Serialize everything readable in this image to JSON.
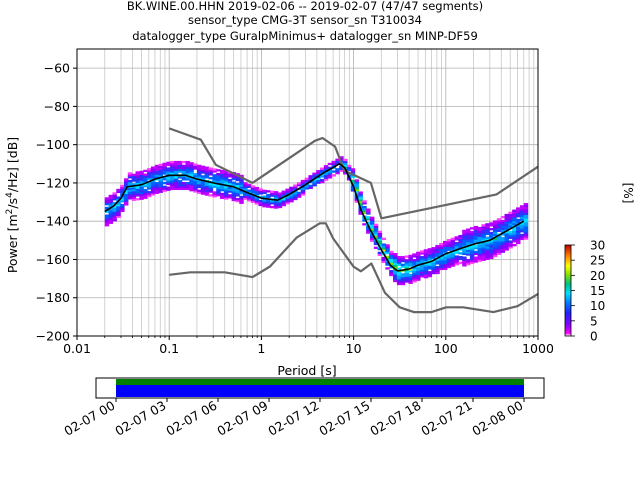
{
  "chart_data": {
    "type": "heatmap",
    "title_lines": [
      "BK.WINE.00.HHN   2019-02-06 -- 2019-02-07  (47/47 segments)",
      "sensor_type CMG-3T sensor_sn T310034",
      "datalogger_type GuralpMinimus+ datalogger_sn MINP-DF59"
    ],
    "xlabel": "Period [s]",
    "ylabel": "Power [m²/s⁴/Hz] [dB]",
    "xscale": "log",
    "xlim": [
      0.01,
      1000
    ],
    "ylim": [
      -200,
      -50
    ],
    "x_ticks": [
      {
        "value": 0.01,
        "label": "0.01"
      },
      {
        "value": 0.1,
        "label": "0.1"
      },
      {
        "value": 1,
        "label": "1"
      },
      {
        "value": 10,
        "label": "10"
      },
      {
        "value": 100,
        "label": "100"
      },
      {
        "value": 1000,
        "label": "1000"
      }
    ],
    "y_ticks": [
      {
        "value": -60,
        "label": "−60"
      },
      {
        "value": -80,
        "label": "−80"
      },
      {
        "value": -100,
        "label": "−100"
      },
      {
        "value": -120,
        "label": "−120"
      },
      {
        "value": -140,
        "label": "−140"
      },
      {
        "value": -160,
        "label": "−160"
      },
      {
        "value": -180,
        "label": "−180"
      },
      {
        "value": -200,
        "label": "−200"
      }
    ],
    "grid": true,
    "colorbar": {
      "label": "[%]",
      "range": [
        0,
        30
      ],
      "ticks": [
        "0",
        "5",
        "10",
        "15",
        "20",
        "25",
        "30"
      ]
    },
    "nhnm": {
      "x": [
        0.1,
        0.22,
        0.32,
        0.8,
        3.8,
        4.6,
        6.3,
        7.9,
        15.4,
        20,
        354.8,
        1000
      ],
      "y": [
        -91.5,
        -97.4,
        -110.5,
        -120,
        -98,
        -96.5,
        -101,
        -113.5,
        -120,
        -138.5,
        -126,
        -111.5
      ]
    },
    "nlnm": {
      "x": [
        0.1,
        0.17,
        0.4,
        0.8,
        1.24,
        2.4,
        4.3,
        5,
        6,
        10,
        12,
        15.6,
        21.9,
        31.6,
        45,
        70,
        101,
        154,
        328,
        600,
        1000
      ],
      "y": [
        -168,
        -166.7,
        -166.7,
        -169.2,
        -163.7,
        -148.6,
        -141.1,
        -141.1,
        -149,
        -163.8,
        -166.2,
        -162.1,
        -177.5,
        -185,
        -187.5,
        -187.5,
        -185,
        -185,
        -187.5,
        -184.4,
        -178
      ]
    },
    "mean_curve": {
      "x": [
        0.02,
        0.025,
        0.03,
        0.035,
        0.05,
        0.07,
        0.1,
        0.15,
        0.2,
        0.3,
        0.5,
        0.7,
        1,
        1.5,
        2,
        3,
        4,
        5,
        6,
        7,
        8,
        10,
        12,
        15,
        20,
        25,
        30,
        40,
        50,
        70,
        100,
        150,
        200,
        300,
        500,
        700
      ],
      "y": [
        -135,
        -132,
        -128,
        -122,
        -121,
        -118,
        -116,
        -116,
        -118,
        -120,
        -122,
        -125,
        -128,
        -129,
        -126,
        -121,
        -117,
        -114,
        -112,
        -110,
        -112,
        -122,
        -134,
        -144,
        -155,
        -163,
        -166,
        -165,
        -163,
        -161,
        -157,
        -154,
        -152,
        -150,
        -144,
        -140
      ]
    },
    "timeline": {
      "ticks": [
        "02-07 00",
        "02-07 03",
        "02-07 06",
        "02-07 09",
        "02-07 12",
        "02-07 15",
        "02-07 18",
        "02-07 21",
        "02-08 00"
      ],
      "bar_colors": [
        "#008000",
        "#0000ff"
      ]
    }
  }
}
